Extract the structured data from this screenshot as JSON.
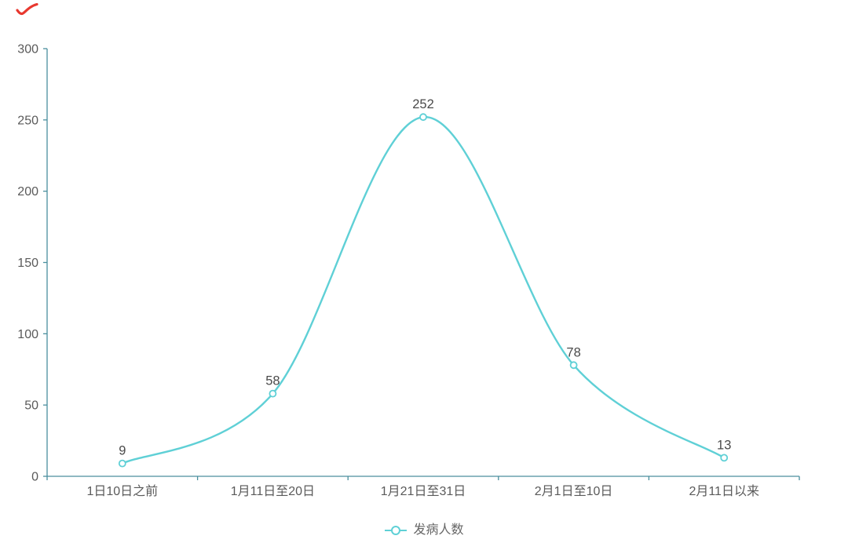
{
  "page": {
    "background": "#ffffff"
  },
  "red_mark": {
    "color": "#e8382f"
  },
  "chart_data": {
    "type": "line",
    "smooth": true,
    "title": "",
    "xlabel": "",
    "ylabel": "",
    "categories": [
      "1日10日之前",
      "1月11日至20日",
      "1月21日至31日",
      "2月1日至10日",
      "2月11日以来"
    ],
    "series": [
      {
        "name": "发病人数",
        "values": [
          9,
          58,
          252,
          78,
          13
        ]
      }
    ],
    "point_labels": [
      "9",
      "58",
      "252",
      "78",
      "13"
    ],
    "y_ticks": [
      "0",
      "50",
      "100",
      "150",
      "200",
      "250",
      "300"
    ],
    "ylim": [
      0,
      300
    ],
    "grid": false,
    "legend_position": "bottom",
    "colors": {
      "line": "#5fd0d6",
      "marker_fill": "#ffffff",
      "axis": "#4a8f9e",
      "axis_text": "#5a5a5a",
      "point_label_text": "#4a4a4a",
      "legend_text": "#666666"
    }
  }
}
